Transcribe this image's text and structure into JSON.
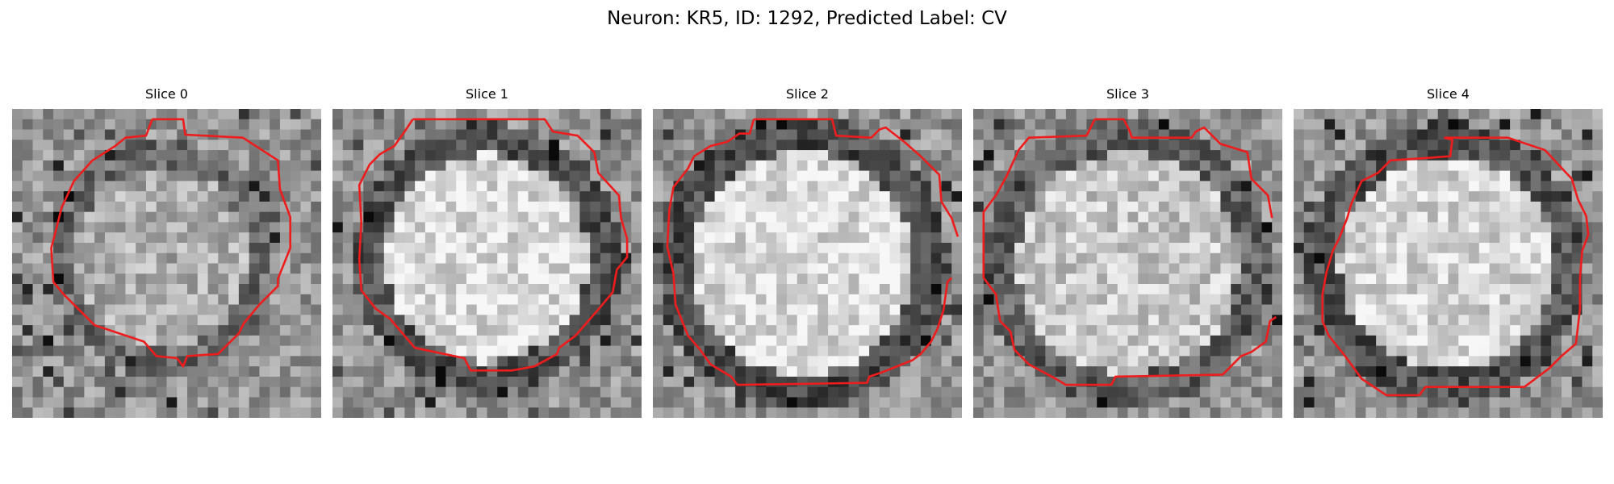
{
  "figure": {
    "title": "Neuron: KR5, ID: 1292, Predicted Label: CV"
  },
  "panels": [
    {
      "title": "Slice 0"
    },
    {
      "title": "Slice 1"
    },
    {
      "title": "Slice 2"
    },
    {
      "title": "Slice 3"
    },
    {
      "title": "Slice 4"
    }
  ],
  "colors": {
    "contour": "#ee1c1c",
    "background": "#ffffff",
    "text": "#000000"
  }
}
